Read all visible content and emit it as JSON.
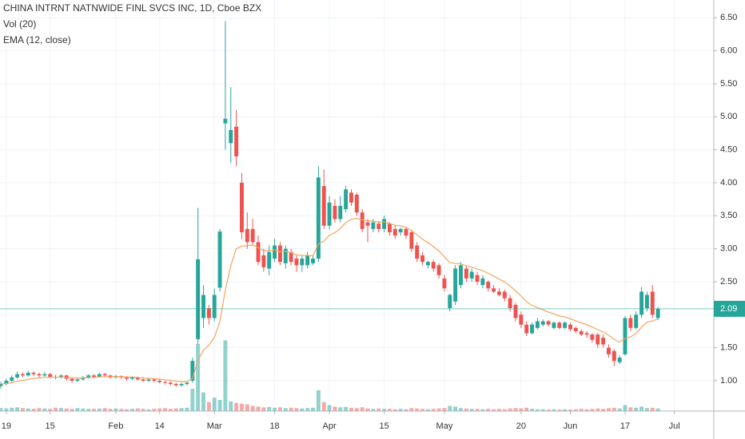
{
  "chart_data": {
    "type": "candlestick",
    "title": "CHINA INTRNT NATNWIDE FINL SVCS INC, 1D, Cboe BZX",
    "volume_label": "Vol (20)",
    "ema_label": "EMA (12, close)",
    "ema_period": 12,
    "up_color": "#26a69a",
    "down_color": "#ef5350",
    "ema_color": "#f5a55c",
    "open": [
      0.92,
      0.95,
      1.0,
      1.05,
      1.1,
      1.08,
      1.12,
      1.1,
      1.08,
      1.1,
      1.06,
      1.05,
      1.08,
      1.03,
      1.0,
      1.02,
      1.05,
      1.08,
      1.06,
      1.1,
      1.08,
      1.05,
      1.07,
      1.05,
      1.03,
      1.05,
      1.02,
      1.0,
      1.02,
      1.0,
      0.98,
      0.97,
      0.95,
      0.93,
      0.95,
      1.0,
      1.63,
      1.95,
      2.1,
      1.95,
      2.41,
      4.9,
      4.6,
      4.85,
      4.0,
      3.3,
      3.3,
      3.1,
      2.9,
      2.7,
      2.85,
      3.05,
      2.78,
      2.95,
      2.85,
      2.75,
      2.75,
      2.78,
      2.85,
      3.95,
      3.35,
      3.65,
      3.45,
      3.6,
      3.85,
      3.82,
      3.55,
      3.4,
      3.3,
      3.38,
      3.3,
      3.38,
      3.3,
      3.25,
      3.3,
      3.25,
      3.05,
      2.9,
      2.75,
      2.8,
      2.75,
      2.55,
      2.1,
      2.2,
      2.45,
      2.7,
      2.55,
      2.6,
      2.45,
      2.5,
      2.4,
      2.35,
      2.35,
      2.25,
      2.15,
      2.0,
      1.85,
      1.72,
      1.8,
      1.85,
      1.9,
      1.8,
      1.88,
      1.8,
      1.85,
      1.8,
      1.75,
      1.72,
      1.7,
      1.7,
      1.65,
      1.5,
      1.45,
      1.28,
      1.4,
      1.95,
      1.8,
      2.0,
      2.1,
      2.35,
      1.95
    ],
    "high": [
      0.98,
      1.03,
      1.08,
      1.14,
      1.13,
      1.15,
      1.14,
      1.12,
      1.13,
      1.12,
      1.09,
      1.1,
      1.09,
      1.05,
      1.04,
      1.07,
      1.1,
      1.1,
      1.12,
      1.12,
      1.09,
      1.09,
      1.08,
      1.07,
      1.07,
      1.06,
      1.04,
      1.04,
      1.03,
      1.02,
      1.0,
      0.99,
      0.97,
      0.97,
      0.99,
      1.35,
      3.62,
      2.45,
      2.15,
      2.4,
      3.3,
      6.45,
      5.45,
      5.1,
      4.15,
      3.55,
      3.45,
      3.2,
      3.0,
      3.05,
      3.15,
      3.1,
      3.05,
      3.0,
      2.9,
      2.9,
      2.95,
      2.9,
      4.25,
      4.2,
      3.8,
      3.75,
      3.8,
      3.95,
      3.9,
      3.85,
      3.6,
      3.45,
      3.45,
      3.42,
      3.5,
      3.4,
      3.35,
      3.32,
      3.32,
      3.28,
      3.1,
      2.95,
      2.82,
      2.83,
      2.78,
      2.6,
      2.32,
      2.75,
      2.8,
      2.75,
      2.7,
      2.65,
      2.6,
      2.52,
      2.45,
      2.4,
      2.38,
      2.3,
      2.18,
      2.05,
      1.9,
      1.88,
      1.95,
      1.93,
      1.92,
      1.9,
      1.9,
      1.9,
      1.88,
      1.82,
      1.78,
      1.75,
      1.72,
      1.72,
      1.7,
      1.55,
      1.48,
      1.38,
      1.98,
      2.0,
      2.05,
      2.42,
      2.35,
      2.45,
      2.12
    ],
    "low": [
      0.88,
      0.93,
      0.98,
      1.03,
      1.05,
      1.06,
      1.07,
      1.05,
      1.06,
      1.04,
      1.02,
      1.03,
      1.0,
      0.97,
      0.98,
      1.0,
      1.03,
      1.04,
      1.05,
      1.06,
      1.03,
      1.03,
      1.02,
      1.0,
      1.01,
      1.0,
      0.98,
      0.98,
      0.97,
      0.96,
      0.94,
      0.93,
      0.91,
      0.91,
      0.93,
      0.97,
      1.55,
      1.8,
      1.85,
      1.9,
      2.35,
      4.5,
      4.3,
      4.25,
      3.15,
      3.0,
      3.05,
      2.75,
      2.65,
      2.6,
      2.8,
      2.75,
      2.7,
      2.75,
      2.65,
      2.65,
      2.7,
      2.75,
      2.8,
      3.3,
      3.3,
      3.4,
      3.4,
      3.55,
      3.65,
      3.5,
      3.25,
      3.1,
      3.25,
      3.25,
      3.25,
      3.2,
      3.15,
      3.2,
      3.15,
      2.95,
      2.8,
      2.75,
      2.7,
      2.65,
      2.55,
      2.35,
      2.05,
      2.15,
      2.4,
      2.5,
      2.5,
      2.45,
      2.4,
      2.35,
      2.33,
      2.28,
      2.2,
      2.05,
      1.9,
      1.8,
      1.68,
      1.7,
      1.78,
      1.82,
      1.82,
      1.78,
      1.78,
      1.78,
      1.75,
      1.72,
      1.68,
      1.65,
      1.58,
      1.5,
      1.5,
      1.35,
      1.22,
      1.25,
      1.38,
      1.75,
      1.78,
      1.95,
      2.05,
      1.95,
      1.92
    ],
    "close": [
      0.95,
      1.0,
      1.05,
      1.1,
      1.08,
      1.12,
      1.1,
      1.08,
      1.1,
      1.06,
      1.05,
      1.08,
      1.03,
      1.0,
      1.02,
      1.05,
      1.08,
      1.06,
      1.1,
      1.08,
      1.05,
      1.07,
      1.05,
      1.03,
      1.05,
      1.02,
      1.0,
      1.02,
      1.0,
      0.98,
      0.97,
      0.95,
      0.93,
      0.95,
      0.97,
      1.3,
      2.84,
      2.3,
      1.95,
      2.3,
      3.26,
      4.97,
      4.8,
      4.4,
      3.25,
      3.1,
      3.1,
      2.8,
      2.72,
      2.95,
      3.05,
      2.8,
      3.0,
      2.8,
      2.75,
      2.85,
      2.9,
      2.85,
      4.08,
      3.35,
      3.7,
      3.45,
      3.65,
      3.9,
      3.7,
      3.55,
      3.3,
      3.35,
      3.4,
      3.3,
      3.45,
      3.25,
      3.2,
      3.3,
      3.2,
      3.0,
      2.85,
      2.8,
      2.8,
      2.7,
      2.6,
      2.4,
      2.3,
      2.7,
      2.75,
      2.55,
      2.65,
      2.5,
      2.55,
      2.4,
      2.35,
      2.3,
      2.25,
      2.1,
      1.95,
      1.85,
      1.72,
      1.85,
      1.9,
      1.9,
      1.85,
      1.88,
      1.8,
      1.88,
      1.78,
      1.75,
      1.7,
      1.7,
      1.62,
      1.55,
      1.55,
      1.4,
      1.3,
      1.35,
      1.95,
      1.8,
      2.0,
      2.35,
      2.3,
      2.0,
      2.09
    ],
    "volume": [
      40,
      35,
      45,
      50,
      40,
      35,
      30,
      40,
      35,
      30,
      45,
      40,
      35,
      30,
      40,
      35,
      30,
      30,
      35,
      40,
      30,
      35,
      30,
      25,
      30,
      35,
      30,
      25,
      30,
      35,
      40,
      30,
      35,
      40,
      45,
      300,
      900,
      250,
      120,
      180,
      150,
      950,
      130,
      110,
      100,
      90,
      70,
      60,
      50,
      55,
      45,
      50,
      40,
      45,
      40,
      35,
      40,
      45,
      280,
      120,
      80,
      60,
      50,
      55,
      45,
      40,
      50,
      35,
      30,
      35,
      30,
      30,
      25,
      30,
      25,
      40,
      35,
      30,
      25,
      30,
      35,
      40,
      70,
      60,
      40,
      35,
      30,
      30,
      25,
      30,
      25,
      30,
      25,
      35,
      40,
      35,
      45,
      30,
      25,
      25,
      20,
      25,
      20,
      25,
      20,
      25,
      30,
      25,
      30,
      35,
      30,
      40,
      45,
      35,
      80,
      50,
      45,
      60,
      40,
      45,
      35
    ],
    "vlim": [
      0,
      1500
    ],
    "ylim": [
      0.54,
      6.77
    ],
    "yticks": [
      {
        "value": 1,
        "label": "1.00"
      },
      {
        "value": 1.5,
        "label": "1.50"
      },
      {
        "value": 2,
        "label": "2.00"
      },
      {
        "value": 2.5,
        "label": "2.50"
      },
      {
        "value": 3,
        "label": "3.00"
      },
      {
        "value": 3.5,
        "label": "3.50"
      },
      {
        "value": 4,
        "label": "4.00"
      },
      {
        "value": 4.5,
        "label": "4.50"
      },
      {
        "value": 5,
        "label": "5.00"
      },
      {
        "value": 5.5,
        "label": "5.50"
      },
      {
        "value": 6,
        "label": "6.00"
      },
      {
        "value": 6.5,
        "label": "6.50"
      }
    ],
    "xlim": [
      -0.15,
      130.2
    ],
    "xticks": [
      {
        "value": 1,
        "label": "19"
      },
      {
        "value": 9,
        "label": "15"
      },
      {
        "value": 21,
        "label": "Feb"
      },
      {
        "value": 29,
        "label": "14"
      },
      {
        "value": 39,
        "label": "Mar"
      },
      {
        "value": 50,
        "label": "18"
      },
      {
        "value": 60,
        "label": "Apr"
      },
      {
        "value": 70,
        "label": "15"
      },
      {
        "value": 81,
        "label": "May"
      },
      {
        "value": 95,
        "label": "20"
      },
      {
        "value": 104,
        "label": "Jun"
      },
      {
        "value": 114,
        "label": "17"
      },
      {
        "value": 123,
        "label": "Jul"
      }
    ],
    "last_price": {
      "value": 2.09,
      "label": "2.09",
      "color": "#26a69a"
    },
    "grid": true
  }
}
